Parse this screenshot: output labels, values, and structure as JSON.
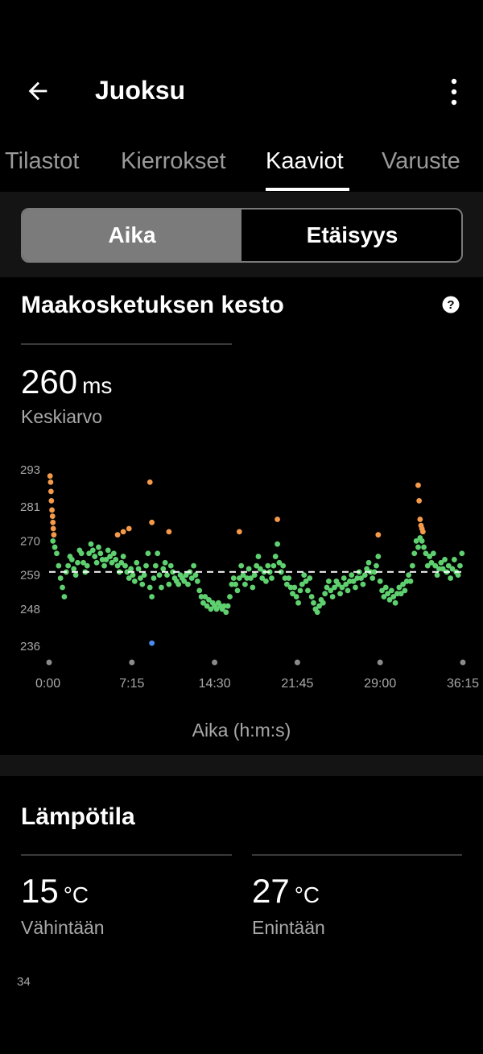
{
  "appbar": {
    "title": "Juoksu",
    "back_icon": "arrow-left-icon",
    "menu_icon": "more-vertical-icon"
  },
  "tabs": [
    {
      "label": "Tilastot",
      "active": false
    },
    {
      "label": "Kierrokset",
      "active": false
    },
    {
      "label": "Kaaviot",
      "active": true
    },
    {
      "label": "Varuste",
      "active": false
    }
  ],
  "segment": {
    "selected": "Aika",
    "other": "Etäisyys"
  },
  "contact_time": {
    "title": "Maakosketuksen kesto",
    "help_icon": "question-circle-icon",
    "value": "260",
    "unit": "ms",
    "value_label": "Keskiarvo",
    "axis_title": "Aika (h:m:s)"
  },
  "chart_data": {
    "type": "scatter",
    "x_unit": "seconds",
    "y_unit": "ms",
    "ylim": [
      236,
      293
    ],
    "xlim": [
      0,
      2175
    ],
    "y_ticks": [
      {
        "value": 236,
        "label": "236"
      },
      {
        "value": 248,
        "label": "248"
      },
      {
        "value": 259,
        "label": "259"
      },
      {
        "value": 270,
        "label": "270"
      },
      {
        "value": 281,
        "label": "281"
      },
      {
        "value": 293,
        "label": "293"
      }
    ],
    "x_ticks": [
      {
        "value": 0,
        "label": "0:00"
      },
      {
        "value": 435,
        "label": "7:15"
      },
      {
        "value": 870,
        "label": "14:30"
      },
      {
        "value": 1305,
        "label": "21:45"
      },
      {
        "value": 1740,
        "label": "29:00"
      },
      {
        "value": 2175,
        "label": "36:15"
      }
    ],
    "average_line": 260,
    "colors": {
      "green": "#5fd06f",
      "orange": "#f59a4a",
      "blue": "#4a8cf0",
      "avg_line": "#ffffff"
    },
    "series": [
      {
        "color_key": "orange",
        "points": [
          [
            5,
            291
          ],
          [
            8,
            289
          ],
          [
            10,
            286
          ],
          [
            12,
            283
          ],
          [
            15,
            280
          ],
          [
            18,
            278
          ],
          [
            20,
            276
          ],
          [
            22,
            274
          ],
          [
            25,
            272
          ],
          [
            530,
            289
          ],
          [
            540,
            276
          ],
          [
            630,
            273
          ],
          [
            360,
            272
          ],
          [
            390,
            273
          ],
          [
            420,
            274
          ],
          [
            1000,
            273
          ],
          [
            1200,
            277
          ],
          [
            1730,
            272
          ],
          [
            1940,
            288
          ],
          [
            1945,
            283
          ],
          [
            1950,
            277
          ],
          [
            1955,
            275
          ],
          [
            1960,
            274
          ],
          [
            1965,
            273
          ]
        ]
      },
      {
        "color_key": "blue",
        "points": [
          [
            540,
            237
          ]
        ]
      },
      {
        "color_key": "green",
        "points": [
          [
            20,
            270
          ],
          [
            30,
            268
          ],
          [
            40,
            266
          ],
          [
            50,
            262
          ],
          [
            60,
            258
          ],
          [
            70,
            255
          ],
          [
            80,
            252
          ],
          [
            90,
            260
          ],
          [
            100,
            262
          ],
          [
            110,
            265
          ],
          [
            120,
            264
          ],
          [
            130,
            261
          ],
          [
            140,
            259
          ],
          [
            150,
            263
          ],
          [
            160,
            267
          ],
          [
            170,
            266
          ],
          [
            180,
            263
          ],
          [
            190,
            260
          ],
          [
            200,
            262
          ],
          [
            210,
            266
          ],
          [
            220,
            269
          ],
          [
            230,
            267
          ],
          [
            240,
            265
          ],
          [
            250,
            263
          ],
          [
            260,
            268
          ],
          [
            270,
            266
          ],
          [
            280,
            264
          ],
          [
            290,
            262
          ],
          [
            300,
            264
          ],
          [
            310,
            267
          ],
          [
            320,
            265
          ],
          [
            330,
            263
          ],
          [
            340,
            266
          ],
          [
            350,
            264
          ],
          [
            360,
            262
          ],
          [
            370,
            260
          ],
          [
            380,
            263
          ],
          [
            390,
            265
          ],
          [
            400,
            262
          ],
          [
            410,
            260
          ],
          [
            420,
            258
          ],
          [
            430,
            261
          ],
          [
            440,
            259
          ],
          [
            450,
            257
          ],
          [
            460,
            263
          ],
          [
            470,
            261
          ],
          [
            480,
            258
          ],
          [
            490,
            256
          ],
          [
            500,
            259
          ],
          [
            510,
            262
          ],
          [
            520,
            266
          ],
          [
            530,
            255
          ],
          [
            540,
            252
          ],
          [
            550,
            258
          ],
          [
            560,
            262
          ],
          [
            570,
            266
          ],
          [
            580,
            259
          ],
          [
            590,
            255
          ],
          [
            600,
            261
          ],
          [
            610,
            263
          ],
          [
            620,
            259
          ],
          [
            630,
            256
          ],
          [
            640,
            262
          ],
          [
            650,
            260
          ],
          [
            660,
            258
          ],
          [
            670,
            257
          ],
          [
            680,
            256
          ],
          [
            690,
            259
          ],
          [
            700,
            258
          ],
          [
            710,
            257
          ],
          [
            720,
            259
          ],
          [
            730,
            256
          ],
          [
            740,
            260
          ],
          [
            750,
            258
          ],
          [
            760,
            262
          ],
          [
            770,
            259
          ],
          [
            780,
            257
          ],
          [
            790,
            254
          ],
          [
            800,
            252
          ],
          [
            810,
            250
          ],
          [
            820,
            252
          ],
          [
            830,
            249
          ],
          [
            840,
            251
          ],
          [
            850,
            248
          ],
          [
            860,
            250
          ],
          [
            870,
            249
          ],
          [
            880,
            248
          ],
          [
            890,
            250
          ],
          [
            900,
            249
          ],
          [
            910,
            248
          ],
          [
            920,
            249
          ],
          [
            930,
            247
          ],
          [
            940,
            249
          ],
          [
            950,
            252
          ],
          [
            960,
            256
          ],
          [
            970,
            258
          ],
          [
            980,
            256
          ],
          [
            990,
            254
          ],
          [
            1000,
            258
          ],
          [
            1010,
            262
          ],
          [
            1020,
            259
          ],
          [
            1030,
            256
          ],
          [
            1040,
            258
          ],
          [
            1050,
            261
          ],
          [
            1060,
            258
          ],
          [
            1070,
            255
          ],
          [
            1080,
            259
          ],
          [
            1090,
            262
          ],
          [
            1100,
            265
          ],
          [
            1110,
            261
          ],
          [
            1120,
            258
          ],
          [
            1130,
            260
          ],
          [
            1140,
            257
          ],
          [
            1150,
            262
          ],
          [
            1160,
            260
          ],
          [
            1170,
            258
          ],
          [
            1180,
            262
          ],
          [
            1190,
            265
          ],
          [
            1200,
            269
          ],
          [
            1210,
            263
          ],
          [
            1220,
            260
          ],
          [
            1230,
            262
          ],
          [
            1240,
            258
          ],
          [
            1250,
            256
          ],
          [
            1260,
            258
          ],
          [
            1270,
            255
          ],
          [
            1280,
            253
          ],
          [
            1290,
            255
          ],
          [
            1300,
            252
          ],
          [
            1310,
            250
          ],
          [
            1320,
            254
          ],
          [
            1330,
            256
          ],
          [
            1340,
            259
          ],
          [
            1350,
            257
          ],
          [
            1360,
            254
          ],
          [
            1370,
            258
          ],
          [
            1380,
            252
          ],
          [
            1390,
            250
          ],
          [
            1400,
            248
          ],
          [
            1410,
            247
          ],
          [
            1420,
            249
          ],
          [
            1430,
            251
          ],
          [
            1440,
            250
          ],
          [
            1450,
            253
          ],
          [
            1460,
            255
          ],
          [
            1470,
            257
          ],
          [
            1480,
            254
          ],
          [
            1490,
            252
          ],
          [
            1500,
            255
          ],
          [
            1510,
            257
          ],
          [
            1520,
            256
          ],
          [
            1530,
            253
          ],
          [
            1540,
            255
          ],
          [
            1550,
            258
          ],
          [
            1560,
            256
          ],
          [
            1570,
            254
          ],
          [
            1580,
            257
          ],
          [
            1590,
            259
          ],
          [
            1600,
            257
          ],
          [
            1610,
            255
          ],
          [
            1620,
            258
          ],
          [
            1630,
            260
          ],
          [
            1640,
            258
          ],
          [
            1650,
            256
          ],
          [
            1660,
            259
          ],
          [
            1670,
            261
          ],
          [
            1680,
            263
          ],
          [
            1690,
            260
          ],
          [
            1700,
            258
          ],
          [
            1710,
            260
          ],
          [
            1720,
            262
          ],
          [
            1730,
            265
          ],
          [
            1740,
            257
          ],
          [
            1750,
            254
          ],
          [
            1760,
            252
          ],
          [
            1770,
            255
          ],
          [
            1780,
            253
          ],
          [
            1790,
            251
          ],
          [
            1800,
            254
          ],
          [
            1810,
            252
          ],
          [
            1820,
            250
          ],
          [
            1830,
            253
          ],
          [
            1840,
            255
          ],
          [
            1850,
            253
          ],
          [
            1860,
            256
          ],
          [
            1870,
            254
          ],
          [
            1880,
            257
          ],
          [
            1890,
            259
          ],
          [
            1900,
            257
          ],
          [
            1910,
            262
          ],
          [
            1920,
            266
          ],
          [
            1930,
            270
          ],
          [
            1940,
            268
          ],
          [
            1950,
            271
          ],
          [
            1960,
            270
          ],
          [
            1970,
            268
          ],
          [
            1980,
            266
          ],
          [
            1990,
            262
          ],
          [
            2000,
            265
          ],
          [
            2010,
            263
          ],
          [
            2020,
            266
          ],
          [
            2030,
            262
          ],
          [
            2040,
            259
          ],
          [
            2050,
            261
          ],
          [
            2060,
            263
          ],
          [
            2070,
            261
          ],
          [
            2080,
            264
          ],
          [
            2090,
            260
          ],
          [
            2100,
            262
          ],
          [
            2110,
            258
          ],
          [
            2120,
            261
          ],
          [
            2130,
            264
          ],
          [
            2140,
            260
          ],
          [
            2150,
            259
          ],
          [
            2160,
            262
          ],
          [
            2170,
            266
          ]
        ]
      }
    ]
  },
  "temperature": {
    "title": "Lämpötila",
    "min": {
      "value": "15",
      "unit": "°C",
      "label": "Vähintään"
    },
    "max": {
      "value": "27",
      "unit": "°C",
      "label": "Enintään"
    }
  },
  "footer_number": "34"
}
